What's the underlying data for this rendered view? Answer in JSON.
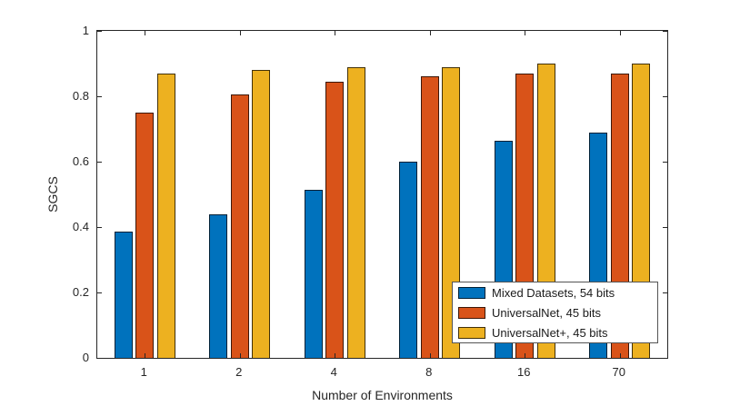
{
  "chart_data": {
    "type": "bar",
    "title": "",
    "xlabel": "Number of Environments",
    "ylabel": "SGCS",
    "categories": [
      "1",
      "2",
      "4",
      "8",
      "16",
      "70"
    ],
    "series": [
      {
        "name": "Mixed Datasets, 54 bits",
        "color": "#0072BD",
        "values": [
          0.385,
          0.44,
          0.515,
          0.6,
          0.665,
          0.69
        ]
      },
      {
        "name": "UniversalNet, 45 bits",
        "color": "#D95319",
        "values": [
          0.75,
          0.805,
          0.845,
          0.86,
          0.87,
          0.87
        ]
      },
      {
        "name": "UniversalNet+, 45 bits",
        "color": "#EDB120",
        "values": [
          0.87,
          0.88,
          0.89,
          0.89,
          0.9,
          0.9
        ]
      }
    ],
    "ylim": [
      0,
      1
    ],
    "yticks": [
      0,
      0.2,
      0.4,
      0.6,
      0.8,
      1
    ],
    "ytick_labels": [
      "0",
      "0.2",
      "0.4",
      "0.6",
      "0.8",
      "1"
    ],
    "grid": false,
    "legend_position": "bottom-right",
    "axis_color": "#262626",
    "bar_edge_color": "#000000",
    "background_color": "#ffffff"
  }
}
